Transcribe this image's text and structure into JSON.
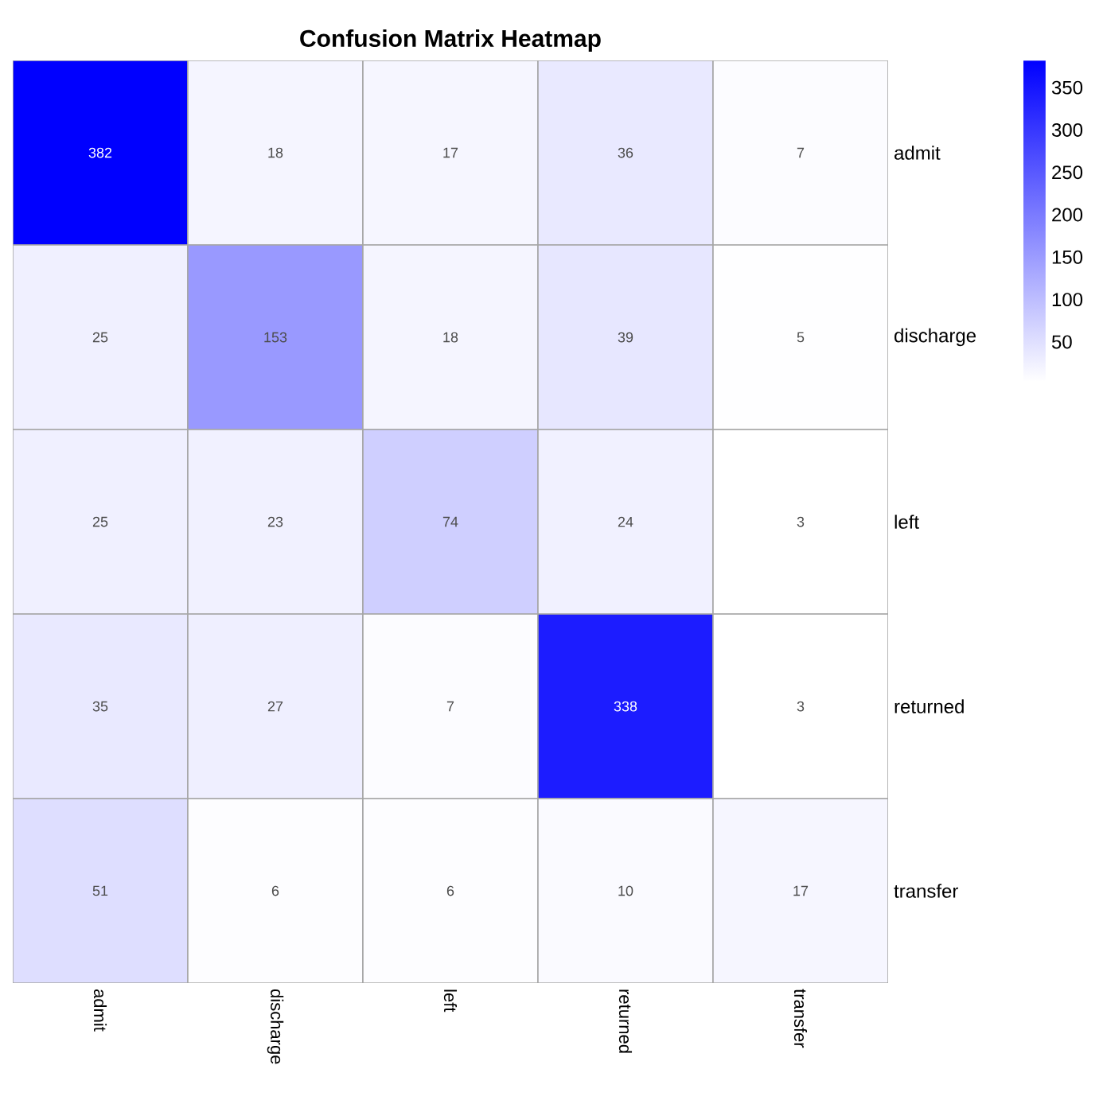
{
  "chart_data": {
    "type": "heatmap",
    "title": "Confusion Matrix Heatmap",
    "categories": [
      "admit",
      "discharge",
      "left",
      "returned",
      "transfer"
    ],
    "y_categories": [
      "admit",
      "discharge",
      "left",
      "returned",
      "transfer"
    ],
    "cells": [
      [
        382,
        18,
        17,
        36,
        7
      ],
      [
        25,
        153,
        18,
        39,
        5
      ],
      [
        25,
        23,
        74,
        24,
        3
      ],
      [
        35,
        27,
        7,
        338,
        3
      ],
      [
        51,
        6,
        6,
        10,
        17
      ]
    ],
    "data_labels": true,
    "clim": [
      3,
      382
    ],
    "cticks": [
      50,
      100,
      150,
      200,
      250,
      300,
      350
    ]
  }
}
